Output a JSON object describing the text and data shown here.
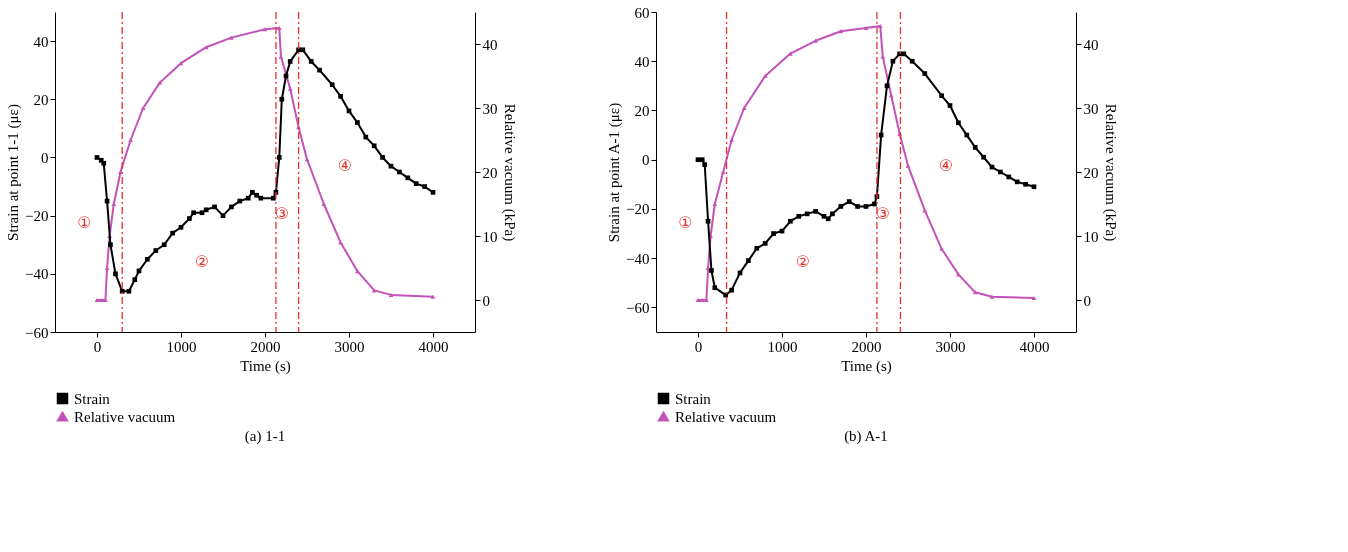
{
  "chart_data": [
    {
      "type": "line",
      "title": "(a) 1-1",
      "xlabel": "Time (s)",
      "ylabel": "Strain at point 1-1 (με)",
      "y2label": "Relative vacuum (kPa)",
      "xlim": [
        -500,
        4500
      ],
      "xticks": [
        0,
        1000,
        2000,
        3000,
        4000
      ],
      "ylim": [
        -60,
        50
      ],
      "yticks": [
        -60,
        -40,
        -20,
        0,
        20,
        40
      ],
      "y2lim": [
        -5,
        45
      ],
      "y2ticks": [
        0,
        10,
        20,
        30,
        40
      ],
      "grid": false,
      "legend": "bottom",
      "series": [
        {
          "name": "Strain",
          "color": "#000000",
          "marker": "square",
          "x": [
            0,
            50,
            80,
            120,
            160,
            220,
            300,
            380,
            450,
            500,
            600,
            700,
            800,
            900,
            1000,
            1100,
            1150,
            1250,
            1300,
            1400,
            1500,
            1600,
            1700,
            1800,
            1850,
            1900,
            1950,
            2100,
            2130,
            2170,
            2200,
            2250,
            2300,
            2400,
            2450,
            2550,
            2650,
            2800,
            2900,
            3000,
            3100,
            3200,
            3300,
            3400,
            3500,
            3600,
            3700,
            3800,
            3900,
            4000
          ],
          "values": [
            0,
            -1,
            -2,
            -15,
            -30,
            -40,
            -46,
            -46,
            -42,
            -39,
            -35,
            -32,
            -30,
            -26,
            -24,
            -21,
            -19,
            -19,
            -18,
            -17,
            -20,
            -17,
            -15,
            -14,
            -12,
            -13,
            -14,
            -14,
            -12,
            0,
            20,
            28,
            33,
            37,
            37,
            33,
            30,
            25,
            21,
            16,
            12,
            7,
            4,
            0,
            -3,
            -5,
            -7,
            -9,
            -10,
            -12
          ]
        },
        {
          "name": "Relative vacuum",
          "color": "#c452b8",
          "marker": "triangle",
          "axis": "y2",
          "x": [
            0,
            50,
            100,
            120,
            150,
            200,
            280,
            400,
            550,
            750,
            1000,
            1300,
            1600,
            2000,
            2170,
            2190,
            2300,
            2400,
            2500,
            2700,
            2900,
            3100,
            3300,
            3500,
            4000
          ],
          "values": [
            0,
            0,
            0,
            5,
            10,
            15,
            20,
            25,
            30,
            34,
            37,
            39.5,
            41,
            42.3,
            42.5,
            38,
            33,
            27,
            22,
            15,
            9,
            4.5,
            1.5,
            0.8,
            0.5
          ]
        }
      ],
      "ref_lines": [
        {
          "axis": "x",
          "value": 300,
          "color": "#e8302a",
          "line_style": "dashed"
        },
        {
          "axis": "x",
          "value": 2130,
          "color": "#e8302a",
          "line_style": "dashed"
        },
        {
          "axis": "x",
          "value": 2400,
          "color": "#e8302a",
          "line_style": "dashed"
        }
      ],
      "annotations": [
        "①",
        "②",
        "③",
        "④"
      ]
    },
    {
      "type": "line",
      "title": "(b) A-1",
      "xlabel": "Time (s)",
      "ylabel": "Strain at point A-1 (με)",
      "y2label": "Relative vacuum (kPa)",
      "xlim": [
        -500,
        4500
      ],
      "xticks": [
        0,
        1000,
        2000,
        3000,
        4000
      ],
      "ylim": [
        -70,
        60
      ],
      "yticks": [
        -60,
        -40,
        -20,
        0,
        20,
        40,
        60
      ],
      "y2lim": [
        -5,
        45
      ],
      "y2ticks": [
        0,
        10,
        20,
        30,
        40
      ],
      "grid": false,
      "legend": "bottom",
      "series": [
        {
          "name": "Strain",
          "color": "#000000",
          "marker": "square",
          "x": [
            0,
            50,
            80,
            120,
            160,
            200,
            330,
            400,
            500,
            600,
            700,
            800,
            900,
            1000,
            1100,
            1200,
            1300,
            1400,
            1500,
            1550,
            1600,
            1700,
            1800,
            1900,
            2000,
            2100,
            2130,
            2180,
            2250,
            2320,
            2400,
            2450,
            2550,
            2700,
            2900,
            3000,
            3100,
            3200,
            3300,
            3400,
            3500,
            3600,
            3700,
            3800,
            3900,
            4000
          ],
          "values": [
            0,
            0,
            -2,
            -25,
            -45,
            -52,
            -55,
            -53,
            -46,
            -41,
            -36,
            -34,
            -30,
            -29,
            -25,
            -23,
            -22,
            -21,
            -23,
            -24,
            -22,
            -19,
            -17,
            -19,
            -19,
            -18,
            -15,
            10,
            30,
            40,
            43,
            43,
            40,
            35,
            26,
            22,
            15,
            10,
            5,
            1,
            -3,
            -5,
            -7,
            -9,
            -10,
            -11
          ]
        },
        {
          "name": "Relative vacuum",
          "color": "#c452b8",
          "marker": "triangle",
          "axis": "y2",
          "x": [
            0,
            50,
            100,
            120,
            150,
            200,
            300,
            400,
            550,
            800,
            1100,
            1400,
            1700,
            2000,
            2170,
            2200,
            2300,
            2400,
            2500,
            2700,
            2900,
            3100,
            3300,
            3500,
            4000
          ],
          "values": [
            0,
            0,
            0,
            5,
            10,
            15,
            20,
            25,
            30,
            35,
            38.5,
            40.5,
            42,
            42.5,
            42.8,
            38,
            32,
            26,
            21,
            14,
            8,
            4,
            1.2,
            0.5,
            0.3
          ]
        }
      ],
      "ref_lines": [
        {
          "axis": "x",
          "value": 340,
          "color": "#e8302a",
          "line_style": "dashed"
        },
        {
          "axis": "x",
          "value": 2130,
          "color": "#e8302a",
          "line_style": "dashed"
        },
        {
          "axis": "x",
          "value": 2410,
          "color": "#e8302a",
          "line_style": "dashed"
        }
      ],
      "annotations": [
        "①",
        "②",
        "③",
        "④"
      ]
    }
  ]
}
